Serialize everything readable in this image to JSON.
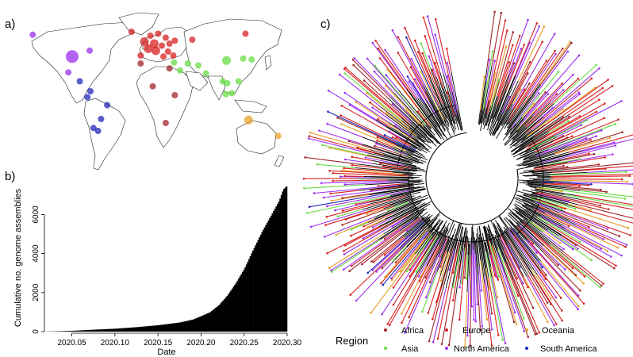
{
  "panels": {
    "a": "a)",
    "b": "b)",
    "c": "c)"
  },
  "colors": {
    "Africa": "#a0262a",
    "Europe": "#d82020",
    "Oceania": "#e8a028",
    "Asia": "#66dd44",
    "North America": "#9b30ef",
    "South America": "#2226b8",
    "bars": "#000000"
  },
  "map_points": [
    {
      "region": "North America",
      "size": 3,
      "lon": -98,
      "lat": 39
    },
    {
      "region": "North America",
      "size": 1,
      "lon": -150,
      "lat": 61
    },
    {
      "region": "North America",
      "size": 1,
      "lon": -75,
      "lat": 45
    },
    {
      "region": "North America",
      "size": 1,
      "lon": -103,
      "lat": 23
    },
    {
      "region": "South America",
      "size": 1,
      "lon": -88,
      "lat": 14
    },
    {
      "region": "South America",
      "size": 1,
      "lon": -74,
      "lat": 4
    },
    {
      "region": "South America",
      "size": 1,
      "lon": -78,
      "lat": -2
    },
    {
      "region": "South America",
      "size": 1,
      "lon": -52,
      "lat": -10
    },
    {
      "region": "South America",
      "size": 1,
      "lon": -70,
      "lat": -33
    },
    {
      "region": "South America",
      "size": 1,
      "lon": -60,
      "lat": -24
    },
    {
      "region": "South America",
      "size": 1,
      "lon": -64,
      "lat": -36
    },
    {
      "region": "Europe",
      "size": 2,
      "lon": -3,
      "lat": 54
    },
    {
      "region": "Europe",
      "size": 2,
      "lon": 10,
      "lat": 52
    },
    {
      "region": "Europe",
      "size": 2,
      "lon": 2,
      "lat": 47
    },
    {
      "region": "Europe",
      "size": 2,
      "lon": 12,
      "lat": 45
    },
    {
      "region": "Europe",
      "size": 1,
      "lon": 20,
      "lat": 50
    },
    {
      "region": "Europe",
      "size": 1,
      "lon": 25,
      "lat": 58
    },
    {
      "region": "Europe",
      "size": 1,
      "lon": -8,
      "lat": 40
    },
    {
      "region": "Europe",
      "size": 1,
      "lon": 37,
      "lat": 55
    },
    {
      "region": "Europe",
      "size": 1,
      "lon": 15,
      "lat": 62
    },
    {
      "region": "Europe",
      "size": 1,
      "lon": 28,
      "lat": 44
    },
    {
      "region": "Europe",
      "size": 1,
      "lon": 60,
      "lat": 56
    },
    {
      "region": "Europe",
      "size": 1,
      "lon": 22,
      "lat": 39
    },
    {
      "region": "Europe",
      "size": 1,
      "lon": 5,
      "lat": 60
    },
    {
      "region": "Europe",
      "size": 1,
      "lon": -20,
      "lat": 64
    },
    {
      "region": "Europe",
      "size": 1,
      "lon": 35,
      "lat": 40
    },
    {
      "region": "Europe",
      "size": 1,
      "lon": 30,
      "lat": 52
    },
    {
      "region": "Europe",
      "size": 1,
      "lon": 130,
      "lat": 62
    },
    {
      "region": "Africa",
      "size": 1,
      "lon": -8,
      "lat": 32
    },
    {
      "region": "Africa",
      "size": 1,
      "lon": 30,
      "lat": 27
    },
    {
      "region": "Africa",
      "size": 1,
      "lon": 8,
      "lat": 9
    },
    {
      "region": "Africa",
      "size": 1,
      "lon": 25,
      "lat": -28
    },
    {
      "region": "Africa",
      "size": 1,
      "lon": 37,
      "lat": 0
    },
    {
      "region": "Asia",
      "size": 2,
      "lon": 105,
      "lat": 35
    },
    {
      "region": "Asia",
      "size": 1,
      "lon": 78,
      "lat": 22
    },
    {
      "region": "Asia",
      "size": 1,
      "lon": 54,
      "lat": 32
    },
    {
      "region": "Asia",
      "size": 1,
      "lon": 44,
      "lat": 25
    },
    {
      "region": "Asia",
      "size": 1,
      "lon": 127,
      "lat": 37
    },
    {
      "region": "Asia",
      "size": 1,
      "lon": 138,
      "lat": 36
    },
    {
      "region": "Asia",
      "size": 1,
      "lon": 100,
      "lat": 14
    },
    {
      "region": "Asia",
      "size": 1,
      "lon": 106,
      "lat": 12
    },
    {
      "region": "Asia",
      "size": 1,
      "lon": 112,
      "lat": 2
    },
    {
      "region": "Asia",
      "size": 1,
      "lon": 121,
      "lat": 14
    },
    {
      "region": "Asia",
      "size": 1,
      "lon": 104,
      "lat": 1
    },
    {
      "region": "Asia",
      "size": 1,
      "lon": 68,
      "lat": 30
    },
    {
      "region": "Asia",
      "size": 1,
      "lon": 36,
      "lat": 33
    },
    {
      "region": "Oceania",
      "size": 2,
      "lon": 134,
      "lat": -25
    },
    {
      "region": "Oceania",
      "size": 1,
      "lon": 173,
      "lat": -41
    }
  ],
  "chart_data": {
    "type": "bar",
    "xlabel": "Date",
    "ylabel": "Cumulative no. genome assemblies",
    "xlim": [
      2020.02,
      2020.3
    ],
    "ylim": [
      0,
      7400
    ],
    "xticks": [
      "2020.05",
      "2020.10",
      "2020.15",
      "2020.20",
      "2020.25",
      "2020.30"
    ],
    "yticks": [
      "0",
      "2000",
      "4000",
      "6000"
    ],
    "x": [
      2020.025,
      2020.05,
      2020.075,
      2020.1,
      2020.125,
      2020.15,
      2020.175,
      2020.19,
      2020.2,
      2020.21,
      2020.22,
      2020.23,
      2020.24,
      2020.25,
      2020.26,
      2020.27,
      2020.28,
      2020.29,
      2020.295,
      2020.3
    ],
    "values": [
      10,
      40,
      100,
      150,
      230,
      330,
      470,
      620,
      800,
      1000,
      1350,
      1850,
      2500,
      3250,
      4200,
      5100,
      5900,
      6700,
      7300,
      7500
    ]
  },
  "tree": {
    "legend_title": "Region",
    "legend_items": [
      "Africa",
      "Europe",
      "Oceania",
      "Asia",
      "North America",
      "South America"
    ]
  }
}
